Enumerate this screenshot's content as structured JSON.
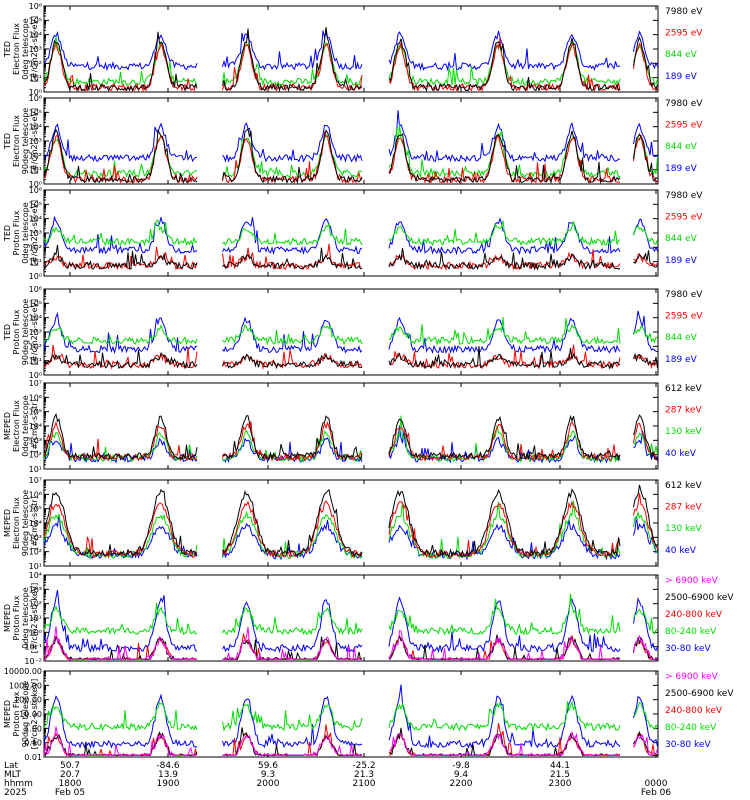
{
  "chart_data": {
    "type": "line",
    "x": [
      "1800",
      "1900",
      "2000",
      "2100",
      "2200",
      "2300",
      "0000"
    ],
    "x_dates": {
      "start": "Feb 05",
      "end": "Feb 06"
    },
    "x_rows": {
      "labels": [
        "Lat",
        "MLT",
        "hhmm",
        "2025"
      ],
      "lat": [
        "50.7",
        "-84.6",
        "59.6",
        "-25.2",
        "-9.8",
        "44.1",
        ""
      ],
      "mlt": [
        "20.7",
        "13.9",
        "9.3",
        "21.3",
        "9.4",
        "21.5",
        ""
      ]
    },
    "panels": [
      {
        "ylabel": [
          "TED",
          "Electron Flux",
          "0deg telescope",
          "[#/cm2-s-str-eV]"
        ],
        "yscale": "log",
        "ylim": [
          1,
          1000000
        ],
        "yticks": [
          "10⁰",
          "10¹",
          "10²",
          "10³",
          "10⁴",
          "10⁵",
          "10⁶"
        ],
        "series": [
          {
            "name": "7980 eV",
            "color": "#000000"
          },
          {
            "name": "2595 eV",
            "color": "#ff0000"
          },
          {
            "name": "844 eV",
            "color": "#00dd00"
          },
          {
            "name": "189 eV",
            "color": "#0000ff"
          }
        ]
      },
      {
        "ylabel": [
          "TED",
          "Electron Flux",
          "90deg telescope",
          "[#/cm2-s-str-eV]"
        ],
        "yscale": "log",
        "ylim": [
          1,
          1000000
        ],
        "yticks": [
          "10⁰",
          "10¹",
          "10²",
          "10³",
          "10⁴",
          "10⁵",
          "10⁶"
        ],
        "series": [
          {
            "name": "7980 eV",
            "color": "#000000"
          },
          {
            "name": "2595 eV",
            "color": "#ff0000"
          },
          {
            "name": "844 eV",
            "color": "#00dd00"
          },
          {
            "name": "189 eV",
            "color": "#0000ff"
          }
        ]
      },
      {
        "ylabel": [
          "TED",
          "Proton Flux",
          "0deg telescope",
          "[#/cm2-s-str-eV]"
        ],
        "yscale": "log",
        "ylim": [
          1,
          1000000
        ],
        "yticks": [
          "10⁰",
          "10¹",
          "10²",
          "10³",
          "10⁴",
          "10⁵",
          "10⁶"
        ],
        "series": [
          {
            "name": "7980 eV",
            "color": "#000000"
          },
          {
            "name": "2595 eV",
            "color": "#ff0000"
          },
          {
            "name": "844 eV",
            "color": "#00dd00"
          },
          {
            "name": "189 eV",
            "color": "#0000ff"
          }
        ]
      },
      {
        "ylabel": [
          "TED",
          "Proton Flux",
          "90deg telescope",
          "[#/cm2-s-str-eV]"
        ],
        "yscale": "log",
        "ylim": [
          1,
          1000000
        ],
        "yticks": [
          "10⁰",
          "10¹",
          "10²",
          "10³",
          "10⁴",
          "10⁵",
          "10⁶"
        ],
        "series": [
          {
            "name": "7980 eV",
            "color": "#000000"
          },
          {
            "name": "2595 eV",
            "color": "#ff0000"
          },
          {
            "name": "844 eV",
            "color": "#00dd00"
          },
          {
            "name": "189 eV",
            "color": "#0000ff"
          }
        ]
      },
      {
        "ylabel": [
          "MEPED",
          "Electron Flux",
          "0deg telescope",
          "[#/cm2-s-str]"
        ],
        "yscale": "log",
        "ylim": [
          10,
          10000000
        ],
        "yticks": [
          "10¹",
          "10²",
          "10³",
          "10⁴",
          "10⁵",
          "10⁶",
          "10⁷"
        ],
        "series": [
          {
            "name": "612 keV",
            "color": "#000000"
          },
          {
            "name": "287 keV",
            "color": "#ff0000"
          },
          {
            "name": "130 keV",
            "color": "#00dd00"
          },
          {
            "name": "40 keV",
            "color": "#0000ff"
          }
        ]
      },
      {
        "ylabel": [
          "MEPED",
          "Electron Flux",
          "90deg telescope",
          "[#/cm2-s-str]"
        ],
        "yscale": "log",
        "ylim": [
          10,
          10000000
        ],
        "yticks": [
          "10¹",
          "10²",
          "10³",
          "10⁴",
          "10⁵",
          "10⁶",
          "10⁷"
        ],
        "series": [
          {
            "name": "612 keV",
            "color": "#000000"
          },
          {
            "name": "287 keV",
            "color": "#ff0000"
          },
          {
            "name": "130 keV",
            "color": "#00dd00"
          },
          {
            "name": "40 keV",
            "color": "#0000ff"
          }
        ]
      },
      {
        "ylabel": [
          "MEPED",
          "Proton Flux",
          "0deg telescope",
          "[#/cm2-s-str-keV]"
        ],
        "yscale": "log",
        "ylim": [
          0.01,
          10000
        ],
        "yticks": [
          "10⁻²",
          "10⁻¹",
          "10⁰",
          "10¹",
          "10²",
          "10³",
          "10⁴"
        ],
        "series": [
          {
            "name": "> 6900 keV",
            "color": "#ff00ff"
          },
          {
            "name": "2500-6900 keV",
            "color": "#000000"
          },
          {
            "name": "240-800 keV",
            "color": "#ff0000"
          },
          {
            "name": "80-240 keV",
            "color": "#00dd00"
          },
          {
            "name": "30-80 keV",
            "color": "#0000ff"
          }
        ]
      },
      {
        "ylabel": [
          "MEPED",
          "Proton Flux",
          "90deg telescope",
          "[#/cm2-s-str-keV]"
        ],
        "yscale": "log",
        "ylim": [
          0.01,
          10000
        ],
        "yticks": [
          "0.01",
          "0.10",
          "1.00",
          "10.00",
          "100.00",
          "1000.00",
          "10000.00"
        ],
        "series": [
          {
            "name": "> 6900 keV",
            "color": "#ff00ff"
          },
          {
            "name": "2500-6900 keV",
            "color": "#000000"
          },
          {
            "name": "240-800 keV",
            "color": "#ff0000"
          },
          {
            "name": "80-240 keV",
            "color": "#00dd00"
          },
          {
            "name": "30-80 keV",
            "color": "#0000ff"
          }
        ]
      }
    ]
  }
}
